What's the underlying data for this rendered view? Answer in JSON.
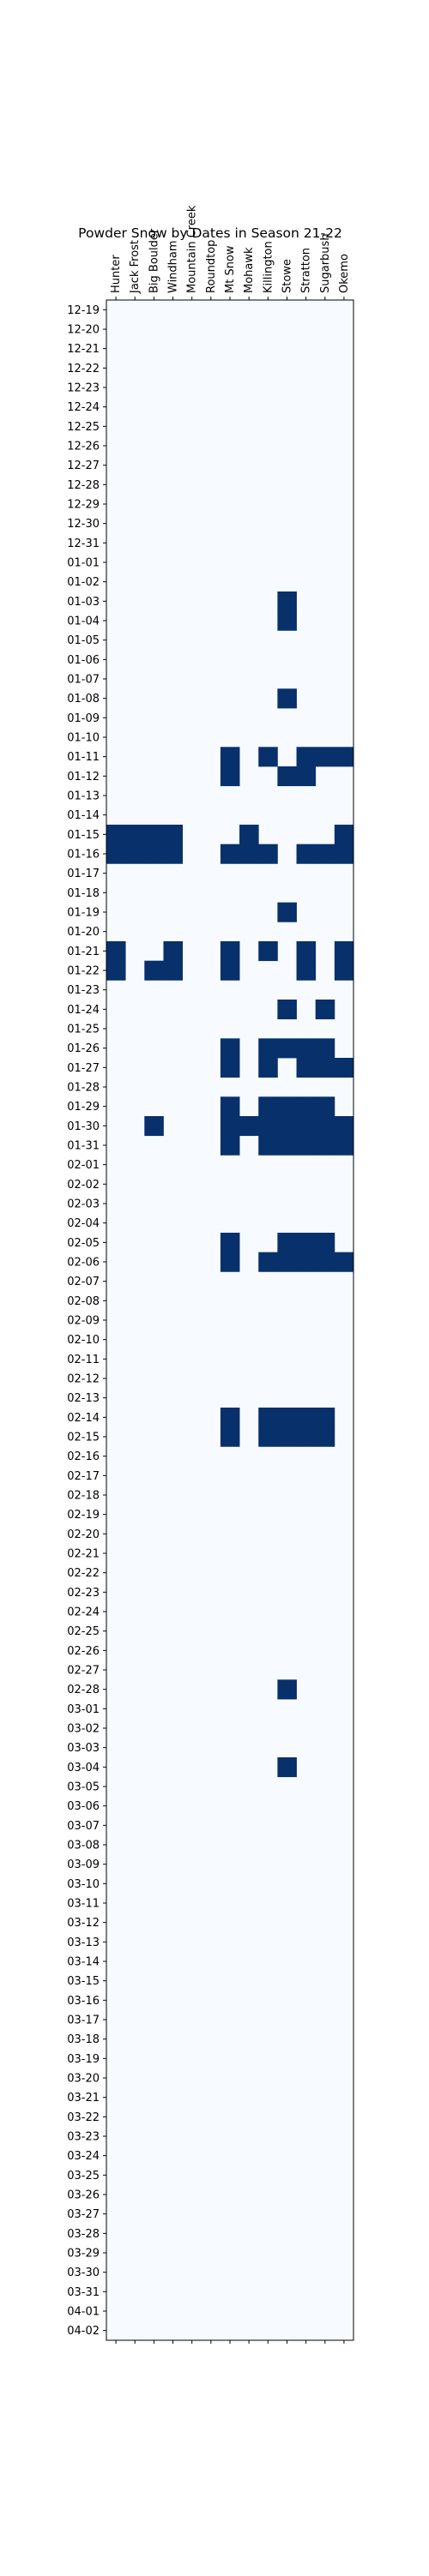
{
  "chart_data": {
    "type": "heatmap",
    "title": "Powder Snow by Dates in Season 21-22",
    "xlabel": "",
    "ylabel": "",
    "resorts": [
      "Hunter",
      "Jack Frost",
      "Big Boulder",
      "Windham",
      "Mountain Creek",
      "Roundtop",
      "Mt Snow",
      "Mohawk",
      "Killington",
      "Stowe",
      "Stratton",
      "Sugarbush",
      "Okemo"
    ],
    "dates": [
      "12-19",
      "12-20",
      "12-21",
      "12-22",
      "12-23",
      "12-24",
      "12-25",
      "12-26",
      "12-27",
      "12-28",
      "12-29",
      "12-30",
      "12-31",
      "01-01",
      "01-02",
      "01-03",
      "01-04",
      "01-05",
      "01-06",
      "01-07",
      "01-08",
      "01-09",
      "01-10",
      "01-11",
      "01-12",
      "01-13",
      "01-14",
      "01-15",
      "01-16",
      "01-17",
      "01-18",
      "01-19",
      "01-20",
      "01-21",
      "01-22",
      "01-23",
      "01-24",
      "01-25",
      "01-26",
      "01-27",
      "01-28",
      "01-29",
      "01-30",
      "01-31",
      "02-01",
      "02-02",
      "02-03",
      "02-04",
      "02-05",
      "02-06",
      "02-07",
      "02-08",
      "02-09",
      "02-10",
      "02-11",
      "02-12",
      "02-13",
      "02-14",
      "02-15",
      "02-16",
      "02-17",
      "02-18",
      "02-19",
      "02-20",
      "02-21",
      "02-22",
      "02-23",
      "02-24",
      "02-25",
      "02-26",
      "02-27",
      "02-28",
      "03-01",
      "03-02",
      "03-03",
      "03-04",
      "03-05",
      "03-06",
      "03-07",
      "03-08",
      "03-09",
      "03-10",
      "03-11",
      "03-12",
      "03-13",
      "03-14",
      "03-15",
      "03-16",
      "03-17",
      "03-18",
      "03-19",
      "03-20",
      "03-21",
      "03-22",
      "03-23",
      "03-24",
      "03-25",
      "03-26",
      "03-27",
      "03-28",
      "03-29",
      "03-30",
      "03-31",
      "04-01",
      "04-02"
    ],
    "powder_days": {
      "01-03": [
        "Stowe"
      ],
      "01-04": [
        "Stowe"
      ],
      "01-08": [
        "Stowe"
      ],
      "01-11": [
        "Mt Snow",
        "Killington",
        "Stratton",
        "Sugarbush",
        "Okemo"
      ],
      "01-12": [
        "Mt Snow",
        "Stowe",
        "Stratton"
      ],
      "01-15": [
        "Hunter",
        "Jack Frost",
        "Big Boulder",
        "Windham",
        "Mohawk",
        "Okemo"
      ],
      "01-16": [
        "Hunter",
        "Jack Frost",
        "Big Boulder",
        "Windham",
        "Mt Snow",
        "Mohawk",
        "Killington",
        "Stratton",
        "Sugarbush",
        "Okemo"
      ],
      "01-19": [
        "Stowe"
      ],
      "01-21": [
        "Hunter",
        "Windham",
        "Mt Snow",
        "Killington",
        "Stratton",
        "Okemo"
      ],
      "01-22": [
        "Hunter",
        "Big Boulder",
        "Windham",
        "Mt Snow",
        "Stratton",
        "Okemo"
      ],
      "01-24": [
        "Stowe",
        "Sugarbush"
      ],
      "01-26": [
        "Mt Snow",
        "Killington",
        "Stowe",
        "Stratton",
        "Sugarbush"
      ],
      "01-27": [
        "Mt Snow",
        "Killington",
        "Stratton",
        "Sugarbush",
        "Okemo"
      ],
      "01-29": [
        "Mt Snow",
        "Killington",
        "Stowe",
        "Stratton",
        "Sugarbush"
      ],
      "01-30": [
        "Big Boulder",
        "Mt Snow",
        "Mohawk",
        "Killington",
        "Stowe",
        "Stratton",
        "Sugarbush",
        "Okemo"
      ],
      "01-31": [
        "Mt Snow",
        "Killington",
        "Stowe",
        "Stratton",
        "Sugarbush",
        "Okemo"
      ],
      "02-05": [
        "Mt Snow",
        "Stowe",
        "Stratton",
        "Sugarbush"
      ],
      "02-06": [
        "Mt Snow",
        "Killington",
        "Stowe",
        "Stratton",
        "Sugarbush",
        "Okemo"
      ],
      "02-14": [
        "Mt Snow",
        "Killington",
        "Stowe",
        "Stratton",
        "Sugarbush"
      ],
      "02-15": [
        "Mt Snow",
        "Killington",
        "Stowe",
        "Stratton",
        "Sugarbush"
      ],
      "02-28": [
        "Stowe"
      ],
      "03-04": [
        "Stowe"
      ]
    },
    "colors": {
      "no_powder": "#f7fbff",
      "powder": "#08306b"
    },
    "grid": false,
    "legend": "none"
  }
}
